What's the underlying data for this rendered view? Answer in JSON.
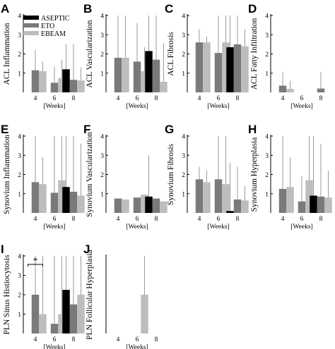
{
  "colors": {
    "ASEPTIC": "#000000",
    "ETO": "#7a7a7a",
    "EBEAM": "#bdbdbd",
    "whisker": "#9a9a9a"
  },
  "legend": [
    "ASEPTIC",
    "ETO",
    "EBEAM"
  ],
  "x_categories": [
    "4",
    "6",
    "8"
  ],
  "x_axis_label": "[Weeks]",
  "y_ticks": [
    "1",
    "2",
    "3",
    "4"
  ],
  "significance_marker": "*",
  "chart_data": [
    {
      "letter": "A",
      "type": "bar",
      "ylabel": "ACL Inflammation",
      "ylim": [
        0,
        4
      ],
      "series": [
        {
          "name": "ASEPTIC",
          "values": [
            null,
            null,
            1.2
          ]
        },
        {
          "name": "ETO",
          "values": [
            1.15,
            0.5,
            0.65
          ]
        },
        {
          "name": "EBEAM",
          "values": [
            1.1,
            0.75,
            0.62
          ]
        }
      ],
      "error_upper": [
        [
          null,
          null,
          2.5
        ],
        [
          2.2,
          1.35,
          2.5
        ],
        [
          1.6,
          1.7,
          1.3
        ]
      ]
    },
    {
      "letter": "B",
      "type": "bar",
      "ylabel": "ACL Vascularization",
      "ylim": [
        0,
        4
      ],
      "series": [
        {
          "name": "ASEPTIC",
          "values": [
            null,
            null,
            2.15
          ]
        },
        {
          "name": "ETO",
          "values": [
            1.8,
            1.6,
            1.7
          ]
        },
        {
          "name": "EBEAM",
          "values": [
            1.8,
            1.1,
            0.55
          ]
        }
      ],
      "error_upper": [
        [
          null,
          null,
          4
        ],
        [
          4,
          3.6,
          4
        ],
        [
          4,
          2.35,
          2.55
        ]
      ]
    },
    {
      "letter": "C",
      "type": "bar",
      "ylabel": "ACL Fibrosis",
      "ylim": [
        0,
        4
      ],
      "series": [
        {
          "name": "ASEPTIC",
          "values": [
            null,
            null,
            2.35
          ]
        },
        {
          "name": "ETO",
          "values": [
            2.6,
            2.05,
            2.5
          ]
        },
        {
          "name": "EBEAM",
          "values": [
            2.6,
            2.6,
            2.4
          ]
        }
      ],
      "error_upper": [
        [
          null,
          null,
          4
        ],
        [
          3.3,
          4,
          4
        ],
        [
          2.9,
          4,
          3.3
        ]
      ]
    },
    {
      "letter": "D",
      "type": "bar",
      "ylabel": "ACL Fatty Infiltration",
      "ylim": [
        0,
        4
      ],
      "series": [
        {
          "name": "ASEPTIC",
          "values": [
            null,
            null,
            0
          ]
        },
        {
          "name": "ETO",
          "values": [
            0.35,
            0,
            0.2
          ]
        },
        {
          "name": "EBEAM",
          "values": [
            0.18,
            0,
            0
          ]
        }
      ],
      "error_upper": [
        [
          null,
          null,
          0
        ],
        [
          1.05,
          0,
          1.05
        ],
        [
          0.6,
          0,
          0
        ]
      ]
    },
    {
      "letter": "E",
      "type": "bar",
      "ylabel": "Synovium Inflammation",
      "ylim": [
        0,
        4
      ],
      "series": [
        {
          "name": "ASEPTIC",
          "values": [
            null,
            null,
            1.35
          ]
        },
        {
          "name": "ETO",
          "values": [
            1.6,
            1.05,
            1.1
          ]
        },
        {
          "name": "EBEAM",
          "values": [
            1.5,
            1.7,
            0.9
          ]
        }
      ],
      "error_upper": [
        [
          null,
          null,
          4
        ],
        [
          4,
          4,
          4
        ],
        [
          2.9,
          4,
          3.6
        ]
      ]
    },
    {
      "letter": "F",
      "type": "bar",
      "ylabel": "Synovium Vascularization",
      "ylim": [
        0,
        4
      ],
      "series": [
        {
          "name": "ASEPTIC",
          "values": [
            null,
            null,
            0.85
          ]
        },
        {
          "name": "ETO",
          "values": [
            0.75,
            0.8,
            0.75
          ]
        },
        {
          "name": "EBEAM",
          "values": [
            0.7,
            0.95,
            0.6
          ]
        }
      ],
      "error_upper": [
        [
          null,
          null,
          3
        ],
        " ",
        " "
      ]
    },
    {
      "letter": "G",
      "type": "bar",
      "ylabel": "Synovium Fibrosis",
      "ylim": [
        0,
        4
      ],
      "series": [
        {
          "name": "ASEPTIC",
          "values": [
            null,
            null,
            0.1
          ]
        },
        {
          "name": "ETO",
          "values": [
            1.75,
            1.75,
            0.7
          ]
        },
        {
          "name": "EBEAM",
          "values": [
            1.6,
            1.5,
            0.65
          ]
        }
      ],
      "error_upper": [
        [
          null,
          null,
          2.6
        ],
        [
          2.4,
          4,
          2.4
        ],
        [
          2.2,
          4,
          1.4
        ]
      ]
    },
    {
      "letter": "H",
      "type": "bar",
      "ylabel": "Synovium Hyperplasia",
      "ylim": [
        0,
        4
      ],
      "series": [
        {
          "name": "ASEPTIC",
          "values": [
            null,
            null,
            0.9
          ]
        },
        {
          "name": "ETO",
          "values": [
            1.25,
            0.6,
            0.85
          ]
        },
        {
          "name": "EBEAM",
          "values": [
            1.35,
            1.7,
            0.8
          ]
        }
      ],
      "error_upper": [
        [
          null,
          null,
          4
        ],
        [
          4,
          1.9,
          3.6
        ],
        [
          2.9,
          4,
          2.2
        ]
      ]
    },
    {
      "letter": "I",
      "type": "bar",
      "ylabel": "PLN Sinus Histiocytosis",
      "ylim": [
        0,
        4
      ],
      "series": [
        {
          "name": "ASEPTIC",
          "values": [
            null,
            null,
            2.25
          ]
        },
        {
          "name": "ETO",
          "values": [
            2,
            0.5,
            1.5
          ]
        },
        {
          "name": "EBEAM",
          "values": [
            1,
            1,
            2
          ]
        }
      ],
      "error_upper": [
        [
          null,
          null,
          4
        ],
        [
          4,
          4,
          4
        ],
        [
          4,
          4,
          4
        ]
      ],
      "significance": {
        "x_category": "4",
        "between": [
          "ETO",
          "EBEAM"
        ],
        "label": "*"
      }
    },
    {
      "letter": "J",
      "type": "bar",
      "ylabel": "PLN Follicular Hyperplasia",
      "ylim": [
        0,
        4
      ],
      "series": [
        {
          "name": "ASEPTIC",
          "values": [
            null,
            null,
            0
          ]
        },
        {
          "name": "ETO",
          "values": [
            0,
            0,
            0
          ]
        },
        {
          "name": "EBEAM",
          "values": [
            0,
            2,
            0
          ]
        }
      ],
      "error_upper": [
        [
          null,
          null,
          0
        ],
        [
          0,
          0,
          0
        ],
        [
          0,
          4,
          0
        ]
      ],
      "show_y_ticks": false
    }
  ]
}
